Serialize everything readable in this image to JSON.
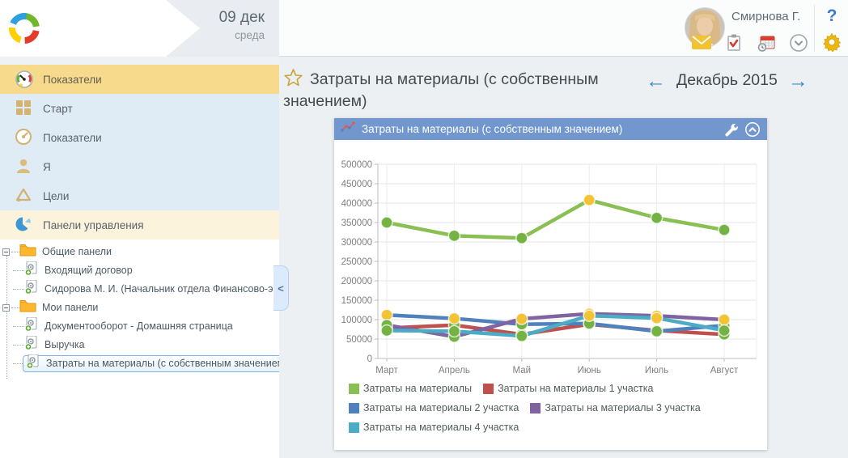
{
  "header": {
    "date_day": "09 дек",
    "date_weekday": "среда",
    "user_name": "Смирнова Г.",
    "help_glyph": "?",
    "icons": [
      "app-logo-icon",
      "mail-icon",
      "tasks-clipboard-icon",
      "calendar-clock-icon",
      "chevron-down-circle-icon",
      "help-icon",
      "gear-icon"
    ]
  },
  "sidebar": {
    "nav": [
      {
        "label": "Показатели",
        "icon": "gauge-color-icon",
        "active": true
      },
      {
        "label": "Старт",
        "icon": "grid-icon"
      },
      {
        "label": "Показатели",
        "icon": "gauge-icon"
      },
      {
        "label": "Я",
        "icon": "person-icon"
      },
      {
        "label": "Цели",
        "icon": "goals-triangle-icon"
      },
      {
        "label": "Панели управления",
        "icon": "pie-chart-icon",
        "highlight": true
      }
    ],
    "tree": [
      {
        "type": "folder",
        "label": "Общие панели"
      },
      {
        "type": "dashboard",
        "label": "Входящий договор"
      },
      {
        "type": "dashboard",
        "label": "Сидорова М. И. (Начальник отдела Финансово-экон"
      },
      {
        "type": "folder",
        "label": "Мои панели"
      },
      {
        "type": "dashboard",
        "label": "Документооборот - Домашняя страница"
      },
      {
        "type": "dashboard",
        "label": "Выручка"
      },
      {
        "type": "dashboard",
        "label": "Затраты на материалы (с собственным значением)",
        "selected": true
      }
    ],
    "collapse_glyph": "<"
  },
  "main": {
    "title": "Затраты на материалы (с собственным значением)",
    "prev_glyph": "←",
    "period": "Декабрь 2015",
    "next_glyph": "→",
    "panel": {
      "title": "Затраты на материалы (с собственным значением)",
      "buttons": [
        "wrench-icon",
        "collapse-chevron-up-icon"
      ]
    }
  },
  "chart_data": {
    "type": "line",
    "title": "Затраты на материалы (с собственным значением)",
    "categories": [
      "Март",
      "Апрель",
      "Май",
      "Июнь",
      "Июль",
      "Август"
    ],
    "ylim": [
      0,
      500000
    ],
    "ytick_step": 50000,
    "grid": true,
    "legend_position": "bottom",
    "marker_palette": {
      "green": "#74b243",
      "yellow": "#f2c435"
    },
    "series": [
      {
        "name": "Затраты на материалы",
        "color": "#8abf54",
        "values": [
          350000,
          316000,
          310000,
          408000,
          362000,
          331000
        ],
        "marker_colors": [
          "green",
          "green",
          "green",
          "yellow",
          "green",
          "green"
        ]
      },
      {
        "name": "Затраты на материалы 1 участка",
        "color": "#c0504d",
        "values": [
          78000,
          86000,
          62000,
          88000,
          72000,
          62000
        ],
        "marker_colors": [
          "green",
          "green",
          "green",
          "green",
          "green",
          "green"
        ]
      },
      {
        "name": "Затраты на материалы 2 участка",
        "color": "#4f81bd",
        "values": [
          112000,
          103000,
          88000,
          90000,
          70000,
          85000
        ],
        "marker_colors": [
          "yellow",
          "yellow",
          "green",
          "green",
          "green",
          "green"
        ]
      },
      {
        "name": "Затраты на материалы 3 участка",
        "color": "#8064a2",
        "values": [
          86000,
          56000,
          102000,
          115000,
          110000,
          100000
        ],
        "marker_colors": [
          "green",
          "green",
          "yellow",
          "yellow",
          "yellow",
          "yellow"
        ]
      },
      {
        "name": "Затраты на материалы 4 участка",
        "color": "#4bacc6",
        "values": [
          72000,
          70000,
          58000,
          110000,
          104000,
          72000
        ],
        "marker_colors": [
          "green",
          "green",
          "green",
          "yellow",
          "yellow",
          "green"
        ]
      }
    ]
  }
}
